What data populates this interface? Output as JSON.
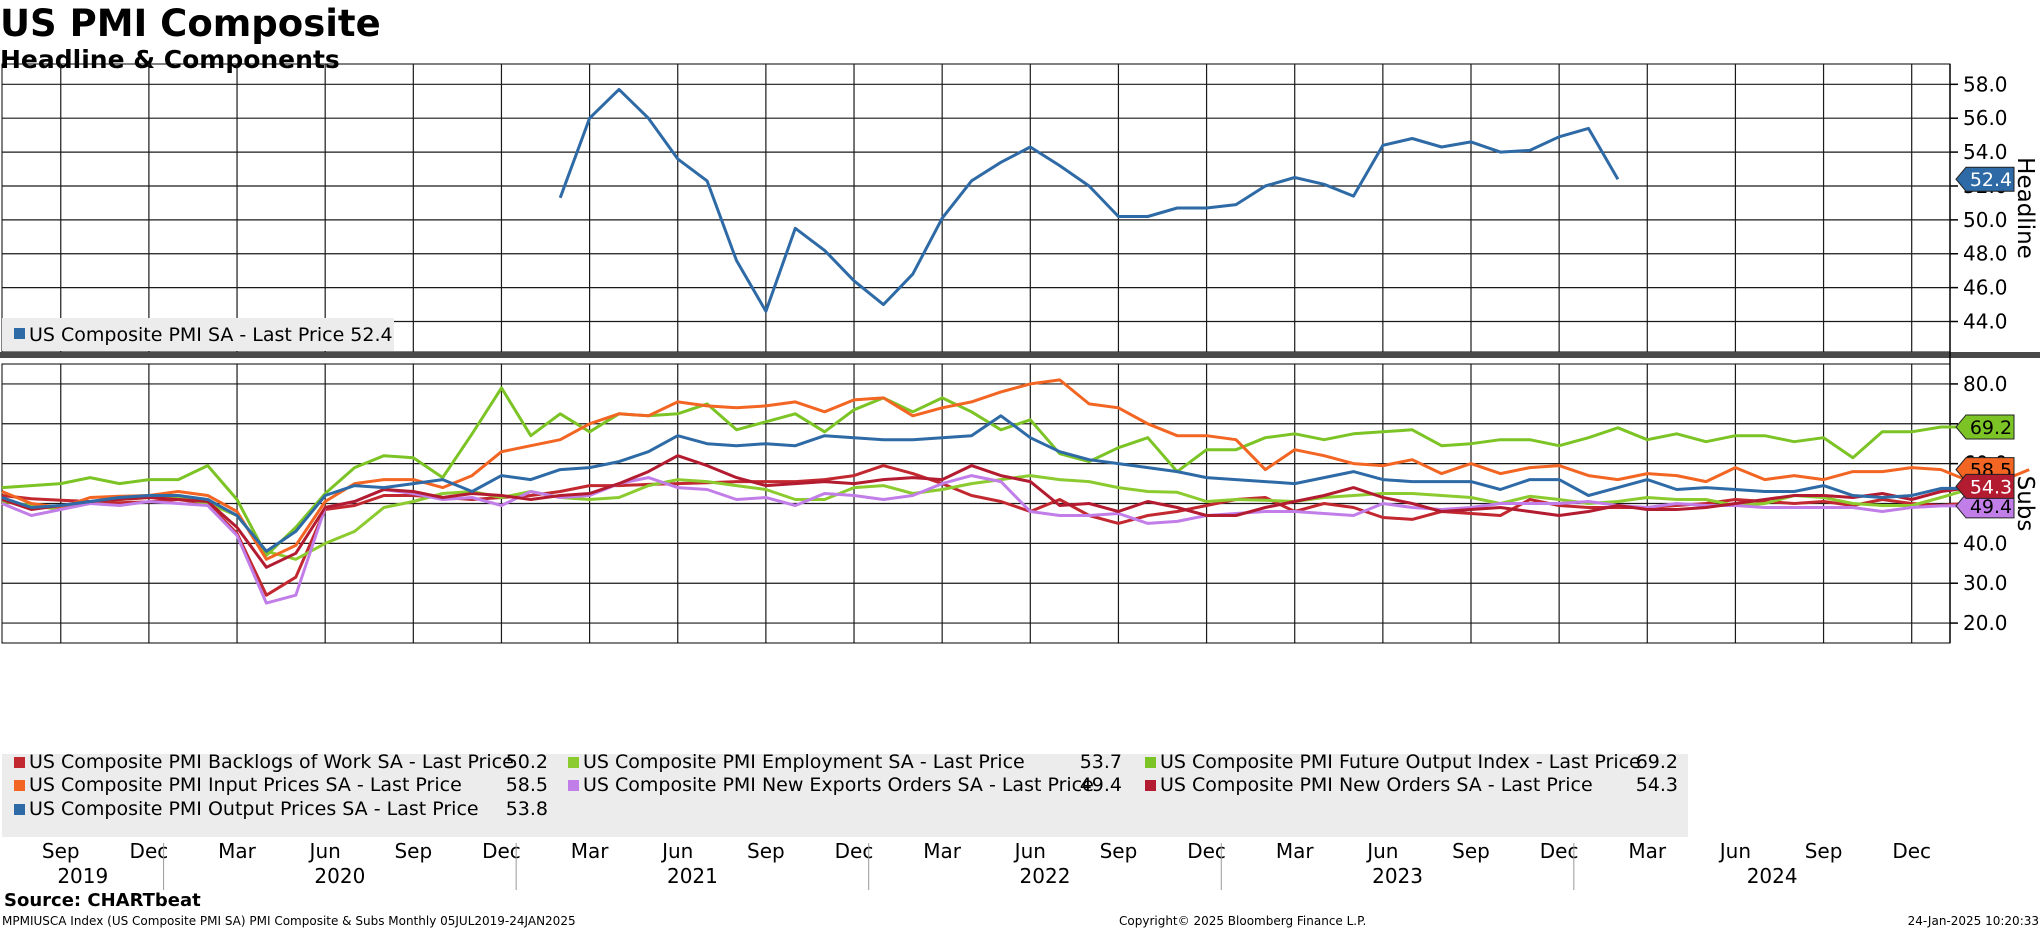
{
  "header": {
    "title": "US PMI Composite",
    "subtitle": "Headline & Components"
  },
  "footer": {
    "source": "Source: CHARTbeat",
    "ticker": "MPMIUSCA Index (US Composite PMI SA) PMI Composite & Subs  Monthly 05JUL2019-24JAN2025",
    "copyright": "Copyright© 2025 Bloomberg Finance L.P.",
    "timestamp": "24-Jan-2025 10:20:33"
  },
  "chart_data": [
    {
      "type": "line",
      "ylabel": "Headline",
      "ylim": [
        42.2,
        59.2
      ],
      "yticks": [
        44,
        46,
        48,
        50,
        52,
        54,
        56,
        58
      ],
      "x_start": "2019-07",
      "grid": true,
      "legend_position": "bottom-left",
      "series": [
        {
          "name": "US Composite PMI SA - Last Price",
          "last_label": "52.4",
          "color": "#2e6aa6",
          "start_index": 19,
          "values": [
            51.3,
            56.0,
            57.7,
            56.0,
            53.6,
            52.3,
            47.6,
            44.6,
            49.5,
            48.2,
            46.4,
            45.0,
            46.8,
            50.1,
            52.3,
            53.4,
            54.3,
            53.2,
            52.0,
            50.2,
            50.2,
            50.7,
            50.7,
            50.9,
            52.0,
            52.5,
            52.1,
            51.4,
            54.4,
            54.8,
            54.3,
            54.6,
            54.0,
            54.1,
            54.9,
            55.4,
            52.4
          ]
        }
      ]
    },
    {
      "type": "line",
      "ylabel": "Subs",
      "ylim": [
        15,
        85
      ],
      "yticks": [
        20,
        30,
        40,
        50,
        60,
        70,
        80
      ],
      "x_start": "2019-07",
      "grid": true,
      "legend_position": "bottom-left",
      "series": [
        {
          "name": "US Composite PMI Backlogs of Work SA - Last Price",
          "last_label": "50.2",
          "color": "#c2282f",
          "badge": false,
          "values": [
            52.0,
            51.2,
            50.8,
            50.5,
            50.2,
            50.4,
            51.0,
            50.0,
            42.5,
            27.0,
            31.5,
            48.5,
            49.5,
            52.0,
            52.0,
            51.5,
            51.0,
            51.5,
            52.0,
            53.0,
            54.5,
            54.5,
            54.8,
            55.0,
            55.2,
            55.5,
            55.5,
            55.5,
            56.0,
            57.0,
            59.5,
            57.5,
            55.0,
            52.0,
            50.5,
            48.0,
            51.0,
            47.0,
            45.0,
            47.0,
            48.0,
            49.5,
            51.0,
            51.5,
            48.0,
            50.0,
            49.0,
            46.5,
            46.0,
            48.0,
            47.5,
            47.0,
            51.0,
            49.5,
            49.0,
            49.0,
            49.0,
            49.5,
            50.0,
            51.0,
            50.5,
            50.0,
            50.5,
            49.5,
            51.0,
            50.0,
            49.5,
            50.2
          ]
        },
        {
          "name": "US Composite PMI Employment SA - Last Price",
          "last_label": "53.7",
          "color": "#8ccb2f",
          "badge": false,
          "values": [
            50.5,
            49.5,
            48.5,
            50.5,
            51.0,
            51.5,
            51.5,
            50.0,
            47.0,
            38.0,
            36.0,
            40.0,
            43.0,
            49.0,
            50.5,
            52.5,
            53.0,
            51.5,
            53.0,
            51.5,
            51.0,
            51.5,
            54.5,
            56.0,
            55.5,
            54.5,
            53.5,
            51.0,
            51.0,
            54.0,
            54.5,
            52.5,
            53.5,
            55.0,
            56.0,
            57.0,
            56.0,
            55.5,
            54.0,
            53.0,
            52.8,
            50.5,
            51.0,
            50.8,
            50.5,
            51.5,
            52.0,
            52.5,
            52.5,
            52.0,
            51.5,
            50.0,
            51.8,
            51.0,
            50.0,
            50.5,
            51.5,
            51.0,
            51.0,
            49.5,
            50.0,
            52.0,
            51.5,
            50.0,
            49.5,
            49.5,
            51.5,
            53.7
          ]
        },
        {
          "name": "US Composite PMI Future Output Index - Last Price",
          "last_label": "69.2",
          "color": "#7cc425",
          "badge": true,
          "values": [
            54.0,
            54.5,
            55.0,
            56.5,
            55.0,
            56.0,
            56.0,
            59.5,
            51.0,
            37.0,
            44.0,
            52.5,
            59.0,
            62.0,
            61.5,
            56.5,
            67.5,
            79.0,
            67.0,
            72.5,
            68.0,
            72.5,
            72.0,
            72.5,
            75.0,
            68.5,
            70.5,
            72.5,
            68.0,
            73.5,
            76.5,
            73.0,
            76.5,
            73.0,
            68.5,
            71.0,
            62.5,
            60.5,
            64.0,
            66.5,
            58.0,
            63.5,
            63.5,
            66.5,
            67.5,
            66.0,
            67.5,
            68.0,
            68.5,
            64.5,
            65.0,
            66.0,
            66.0,
            64.5,
            66.5,
            69.0,
            66.0,
            67.5,
            65.5,
            67.0,
            67.0,
            65.5,
            66.5,
            61.5,
            68.0,
            68.0,
            69.2,
            69.2
          ]
        },
        {
          "name": "US Composite PMI Input Prices SA - Last Price",
          "last_label": "58.5",
          "color": "#f26522",
          "badge": true,
          "values": [
            53.0,
            50.0,
            49.0,
            51.5,
            51.8,
            52.0,
            53.0,
            52.0,
            48.0,
            36.0,
            39.5,
            50.5,
            55.0,
            56.0,
            56.0,
            54.0,
            57.0,
            63.0,
            64.5,
            66.0,
            70.0,
            72.5,
            72.0,
            75.5,
            74.5,
            74.0,
            74.5,
            75.5,
            73.0,
            76.0,
            76.5,
            72.0,
            74.0,
            75.5,
            78.0,
            80.0,
            81.0,
            75.0,
            74.0,
            70.0,
            67.0,
            67.0,
            66.0,
            58.5,
            63.5,
            62.0,
            60.0,
            59.5,
            61.0,
            57.5,
            60.0,
            57.5,
            59.0,
            59.5,
            57.0,
            56.0,
            57.5,
            57.0,
            55.5,
            59.0,
            56.0,
            57.0,
            56.0,
            58.0,
            58.0,
            59.0,
            58.5,
            55.5,
            55.5,
            58.5
          ]
        },
        {
          "name": "US Composite PMI New Exports Orders SA - Last Price",
          "last_label": "49.4",
          "color": "#c27ee8",
          "badge": true,
          "values": [
            50.0,
            47.0,
            48.5,
            50.0,
            49.5,
            50.5,
            50.0,
            49.5,
            42.0,
            25.0,
            27.0,
            49.0,
            50.5,
            53.5,
            52.5,
            51.0,
            51.5,
            49.5,
            53.0,
            51.5,
            52.0,
            55.0,
            56.5,
            54.0,
            53.5,
            51.0,
            51.5,
            49.5,
            52.5,
            52.0,
            51.0,
            52.0,
            55.0,
            57.0,
            55.5,
            48.0,
            47.0,
            47.0,
            47.5,
            45.0,
            45.5,
            47.0,
            47.5,
            48.0,
            48.0,
            47.5,
            47.0,
            50.0,
            49.0,
            48.5,
            49.0,
            50.0,
            50.0,
            50.0,
            50.5,
            49.5,
            49.0,
            50.0,
            49.5,
            49.5,
            49.0,
            49.0,
            49.0,
            49.0,
            48.0,
            49.0,
            49.4,
            49.4
          ]
        },
        {
          "name": "US Composite PMI New Orders SA - Last Price",
          "last_label": "54.3",
          "color": "#b31b30",
          "badge": true,
          "values": [
            51.0,
            48.5,
            49.5,
            50.5,
            51.0,
            51.5,
            51.0,
            50.5,
            44.0,
            34.0,
            37.5,
            49.0,
            50.5,
            53.5,
            53.0,
            51.5,
            52.5,
            52.0,
            51.0,
            52.0,
            52.5,
            55.0,
            58.0,
            62.0,
            59.5,
            56.5,
            54.5,
            55.0,
            55.5,
            55.0,
            56.0,
            56.5,
            56.0,
            59.5,
            57.0,
            55.5,
            49.5,
            50.0,
            48.0,
            50.5,
            49.0,
            47.0,
            47.0,
            49.0,
            50.5,
            52.0,
            54.0,
            51.5,
            50.0,
            48.0,
            48.5,
            49.0,
            48.0,
            47.0,
            48.0,
            49.5,
            48.5,
            48.5,
            49.0,
            50.0,
            51.0,
            52.0,
            52.0,
            51.5,
            52.5,
            51.0,
            53.0,
            54.0,
            54.3
          ]
        },
        {
          "name": "US Composite PMI Output Prices SA - Last Price",
          "last_label": "53.8",
          "color": "#2e6aa6",
          "badge": false,
          "values": [
            51.5,
            49.0,
            49.5,
            50.5,
            51.5,
            52.0,
            52.0,
            51.0,
            47.0,
            38.0,
            43.0,
            52.0,
            54.5,
            54.0,
            55.0,
            56.0,
            53.0,
            57.0,
            56.0,
            58.5,
            59.0,
            60.5,
            63.0,
            67.0,
            65.0,
            64.5,
            65.0,
            64.5,
            67.0,
            66.5,
            66.0,
            66.0,
            66.5,
            67.0,
            72.0,
            66.5,
            63.0,
            61.0,
            60.0,
            59.0,
            58.0,
            56.5,
            56.0,
            55.5,
            55.0,
            56.5,
            58.0,
            56.0,
            55.5,
            55.5,
            55.5,
            53.5,
            56.0,
            56.0,
            52.0,
            54.0,
            56.0,
            53.5,
            54.0,
            53.5,
            53.0,
            53.0,
            54.5,
            52.0,
            51.5,
            52.0,
            53.8,
            53.8
          ]
        }
      ]
    }
  ],
  "x_axis": {
    "month_labels": [
      "Sep",
      "Dec",
      "Mar",
      "Jun",
      "Sep",
      "Dec",
      "Mar",
      "Jun",
      "Sep",
      "Dec",
      "Mar",
      "Jun",
      "Sep",
      "Dec",
      "Mar",
      "Jun",
      "Sep",
      "Dec",
      "Mar",
      "Jun",
      "Sep",
      "Dec"
    ],
    "year_labels": [
      "2019",
      "2020",
      "2021",
      "2022",
      "2023",
      "2024"
    ]
  }
}
